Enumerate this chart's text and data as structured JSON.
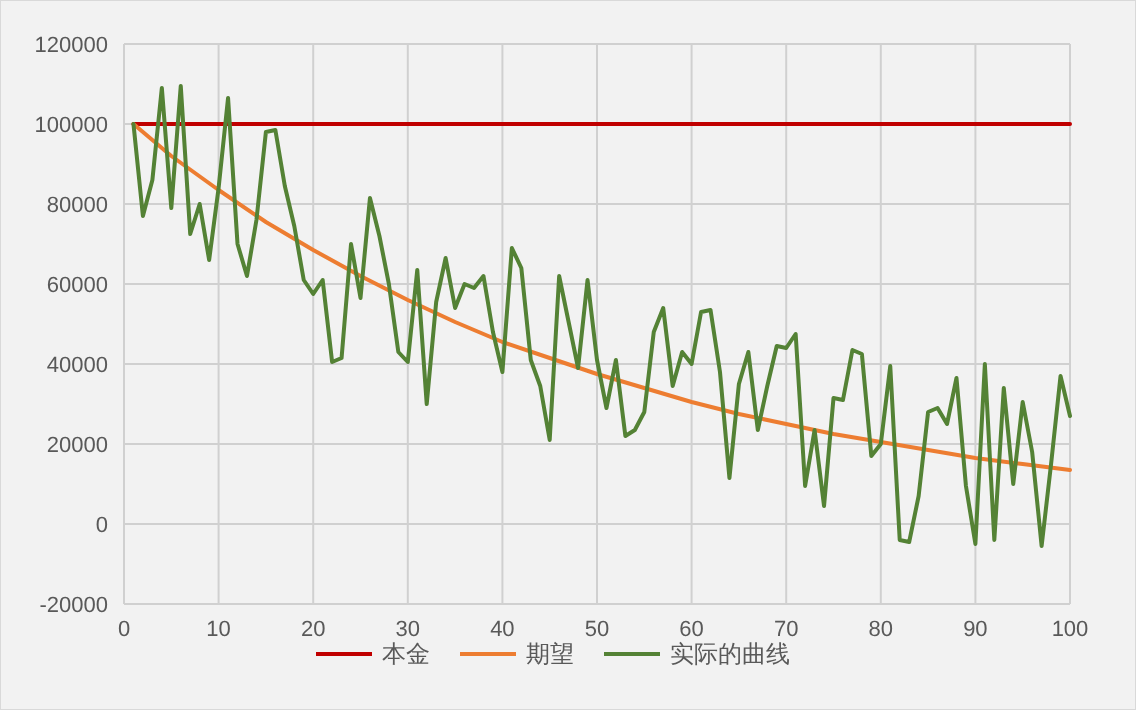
{
  "chart_data": {
    "type": "line",
    "xlim": [
      0,
      100
    ],
    "ylim": [
      -20000,
      120000
    ],
    "xticks": [
      0,
      10,
      20,
      30,
      40,
      50,
      60,
      70,
      80,
      90,
      100
    ],
    "yticks": [
      -20000,
      0,
      20000,
      40000,
      60000,
      80000,
      100000,
      120000
    ],
    "grid": true,
    "legend": "bottom",
    "marker": "none",
    "line_style": "solid",
    "series": [
      {
        "name": "本金",
        "color": "#c00000",
        "x": [
          1,
          100
        ],
        "values": [
          100000,
          100000
        ]
      },
      {
        "name": "期望",
        "color": "#ed7d31",
        "x": [
          1,
          5,
          10,
          15,
          20,
          25,
          30,
          35,
          40,
          45,
          50,
          55,
          60,
          65,
          70,
          75,
          80,
          85,
          90,
          95,
          100
        ],
        "values": [
          100000,
          92000,
          83500,
          75500,
          68500,
          62000,
          56000,
          50500,
          45500,
          41500,
          37500,
          34000,
          30500,
          27500,
          25000,
          22500,
          20500,
          18500,
          16500,
          15000,
          13500
        ]
      },
      {
        "name": "实际的曲线",
        "color": "#548235",
        "x": [
          1,
          2,
          3,
          4,
          5,
          6,
          7,
          8,
          9,
          10,
          11,
          12,
          13,
          14,
          15,
          16,
          17,
          18,
          19,
          20,
          21,
          22,
          23,
          24,
          25,
          26,
          27,
          28,
          29,
          30,
          31,
          32,
          33,
          34,
          35,
          36,
          37,
          38,
          39,
          40,
          41,
          42,
          43,
          44,
          45,
          46,
          47,
          48,
          49,
          50,
          51,
          52,
          53,
          54,
          55,
          56,
          57,
          58,
          59,
          60,
          61,
          62,
          63,
          64,
          65,
          66,
          67,
          68,
          69,
          70,
          71,
          72,
          73,
          74,
          75,
          76,
          77,
          78,
          79,
          80,
          81,
          82,
          83,
          84,
          85,
          86,
          87,
          88,
          89,
          90,
          91,
          92,
          93,
          94,
          95,
          96,
          97,
          98,
          99,
          100
        ],
        "values": [
          100000,
          77000,
          86000,
          109000,
          79000,
          109500,
          72500,
          80000,
          66000,
          84000,
          106500,
          70000,
          62000,
          76000,
          98000,
          98500,
          84500,
          74500,
          61000,
          57500,
          61000,
          40500,
          41500,
          70000,
          56500,
          81500,
          72000,
          60000,
          43000,
          40500,
          63500,
          30000,
          55500,
          66500,
          54000,
          60000,
          59000,
          62000,
          48000,
          38000,
          69000,
          64000,
          41000,
          34500,
          21000,
          62000,
          50500,
          39000,
          61000,
          41000,
          29000,
          41000,
          22000,
          23500,
          28000,
          48000,
          54000,
          34500,
          43000,
          40000,
          53000,
          53500,
          38000,
          11500,
          35000,
          43000,
          23500,
          34500,
          44500,
          44000,
          47500,
          9500,
          23500,
          4500,
          31500,
          31000,
          43500,
          42500,
          17000,
          20000,
          39500,
          -4000,
          -4500,
          7000,
          28000,
          29000,
          25000,
          36500,
          9500,
          -5000,
          40000,
          -4000,
          34000,
          10000,
          30500,
          18000,
          -5500,
          15000,
          37000,
          27000
        ]
      }
    ]
  }
}
